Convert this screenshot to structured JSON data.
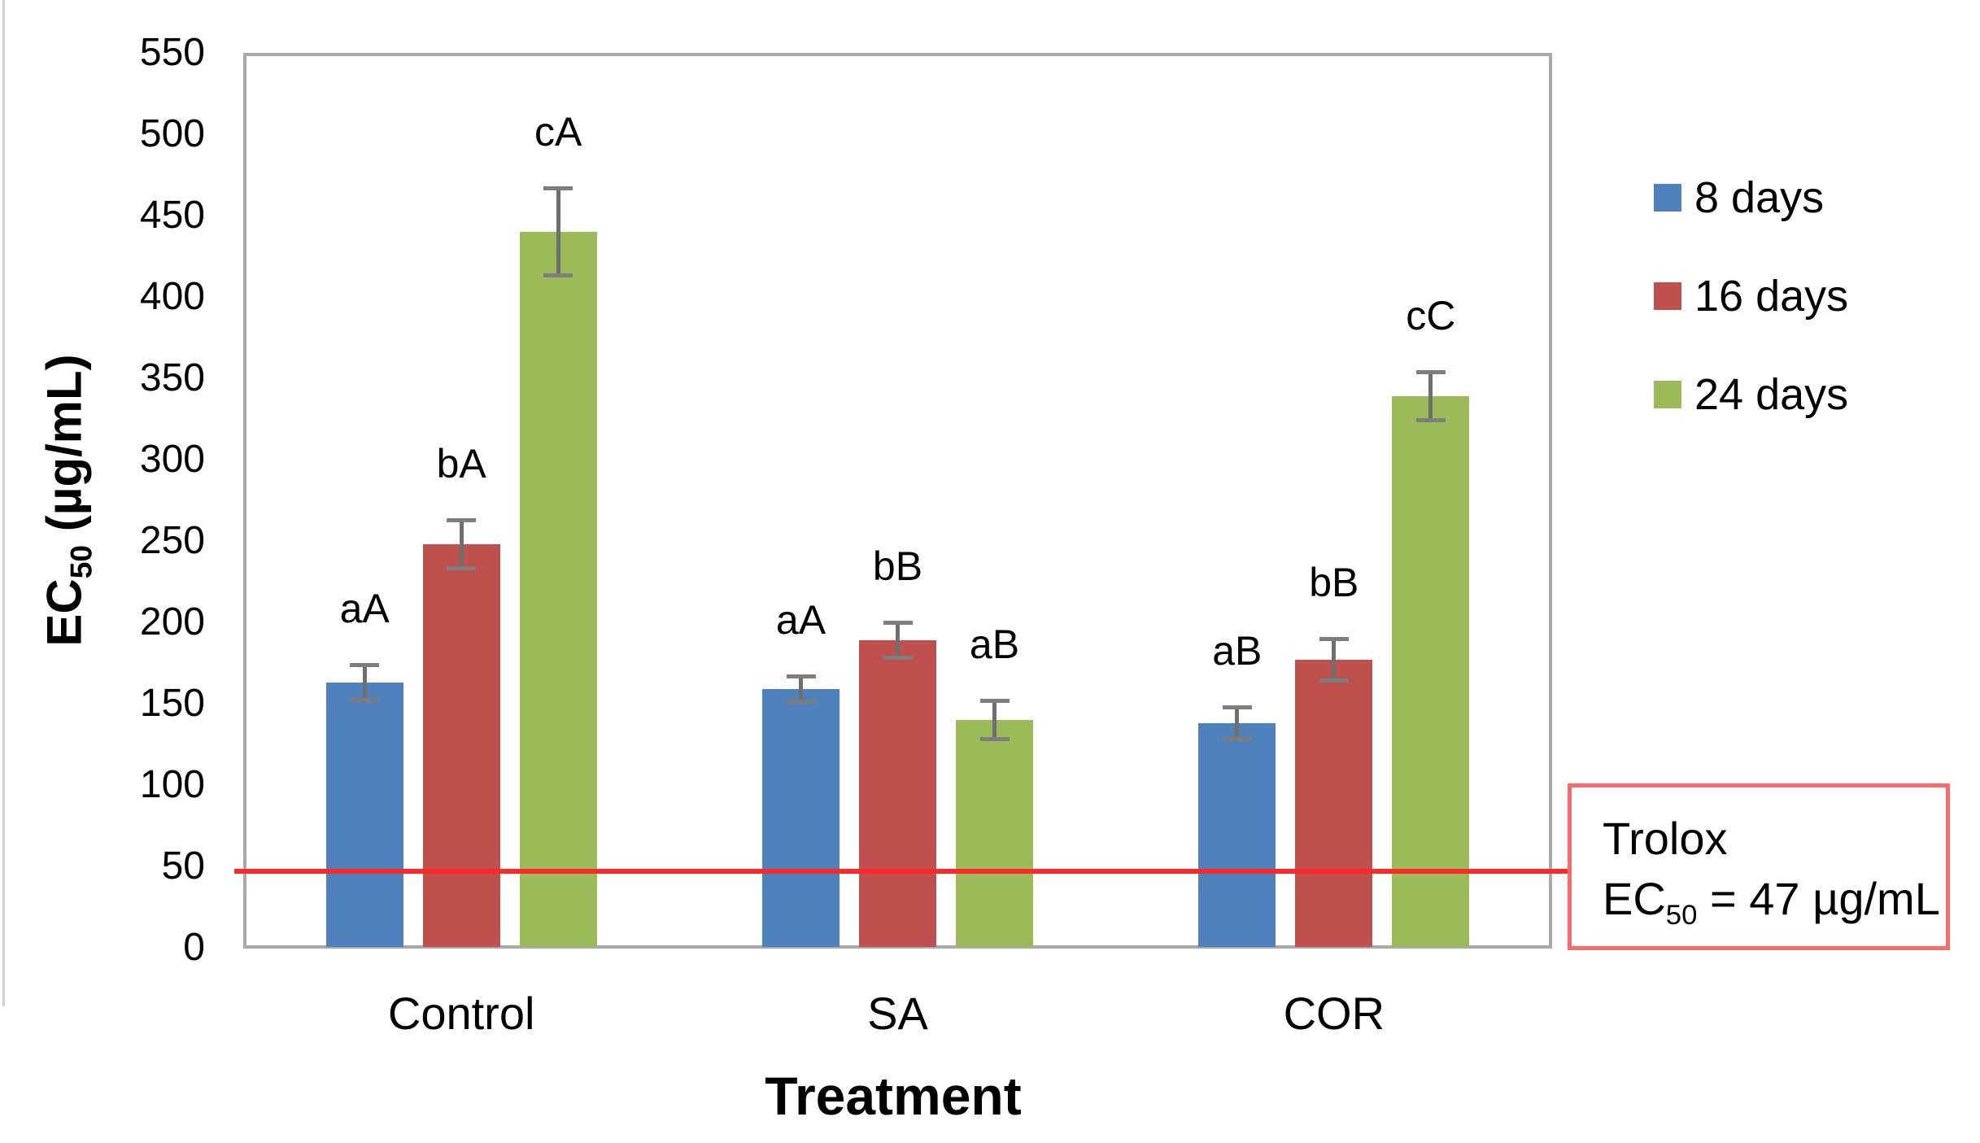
{
  "chart_data": {
    "type": "bar",
    "title": "",
    "xlabel": "Treatment",
    "ylabel": "EC50 (µg/mL)",
    "ylabel_parts": {
      "prefix": "EC",
      "sub": "50",
      "suffix": " (µg/mL)"
    },
    "categories": [
      "Control",
      "SA",
      "COR"
    ],
    "series": [
      {
        "name": "8 days",
        "color": "#4f81bd",
        "values": [
          163,
          159,
          138
        ],
        "errors": [
          11,
          8,
          10
        ],
        "sig_labels": [
          "aA",
          "aA",
          "aB"
        ]
      },
      {
        "name": "16 days",
        "color": "#c0504d",
        "values": [
          248,
          189,
          177
        ],
        "errors": [
          15,
          11,
          13
        ],
        "sig_labels": [
          "bA",
          "bB",
          "bB"
        ]
      },
      {
        "name": "24 days",
        "color": "#9bbb59",
        "values": [
          440,
          140,
          339
        ],
        "errors": [
          27,
          12,
          15
        ],
        "sig_labels": [
          "cA",
          "aB",
          "cC"
        ]
      }
    ],
    "y_axis": {
      "min": 0,
      "max": 550,
      "step": 50,
      "ticks": [
        "0",
        "50",
        "100",
        "150",
        "200",
        "250",
        "300",
        "350",
        "400",
        "450",
        "500",
        "550"
      ]
    },
    "legend": {
      "position": "right",
      "entries": [
        "8 days",
        "16 days",
        "24 days"
      ]
    },
    "grid": false,
    "reference_line": {
      "value": 47,
      "color": "#fb2a2a",
      "annotation": {
        "line1": "Trolox",
        "line2_parts": {
          "prefix": "EC",
          "sub": "50",
          "suffix": " = 47 µg/mL"
        },
        "border_color": "#f96a6a"
      }
    },
    "error_bar_color": "#6f6f6f",
    "plot_border_color": "#a9a9a9"
  }
}
